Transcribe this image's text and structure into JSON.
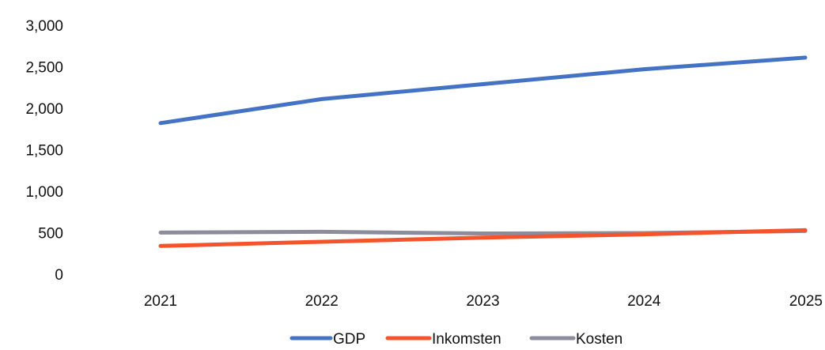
{
  "chart_data": {
    "type": "line",
    "title": "",
    "xlabel": "",
    "ylabel": "",
    "categories": [
      "2021",
      "2022",
      "2023",
      "2024",
      "2025"
    ],
    "ylim": [
      0,
      3000
    ],
    "yticks": [
      "0",
      "500",
      "1,000",
      "1,500",
      "2,000",
      "2,500",
      "3,000"
    ],
    "ytick_values": [
      0,
      500,
      1000,
      1500,
      2000,
      2500,
      3000
    ],
    "grid": false,
    "legend": "bottom-center",
    "series": [
      {
        "name": "GDP",
        "color": "#4472c4",
        "values": [
          1830,
          2120,
          2300,
          2480,
          2620
        ]
      },
      {
        "name": "Inkomsten",
        "color": "#f4532c",
        "values": [
          350,
          400,
          450,
          490,
          540
        ]
      },
      {
        "name": "Kosten",
        "color": "#8c8c9c",
        "values": [
          510,
          520,
          500,
          505,
          530
        ]
      }
    ]
  }
}
